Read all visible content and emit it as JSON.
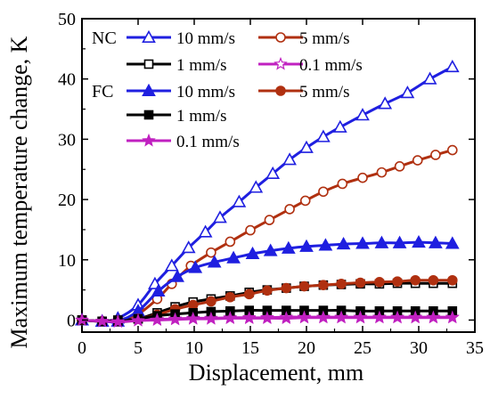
{
  "chart_data": {
    "type": "line",
    "xlabel": "Displacement, mm",
    "ylabel": "Maximum temperature change, K",
    "xlim": [
      0,
      35
    ],
    "ylim": [
      -2,
      50
    ],
    "xticks": [
      "0",
      "5",
      "10",
      "15",
      "20",
      "25",
      "30",
      "35"
    ],
    "yticks": [
      "0",
      "10",
      "20",
      "30",
      "40",
      "50"
    ],
    "grid": false,
    "legend_placement": "top-left",
    "legend_groups": [
      "NC",
      "FC"
    ],
    "series": [
      {
        "name": "10 mm/s",
        "group": "NC",
        "color": "#1f1fe0",
        "marker": "triangle-open",
        "x": [
          0,
          1.8,
          3.2,
          5,
          6.5,
          8,
          9.5,
          11,
          12.3,
          14,
          15.5,
          17,
          18.5,
          20,
          21.5,
          23,
          25,
          27,
          29,
          31,
          33
        ],
        "y": [
          0,
          -0.2,
          0.3,
          2.5,
          6,
          9,
          12,
          14.6,
          17,
          19.6,
          22,
          24.3,
          26.6,
          28.6,
          30.4,
          32,
          34,
          35.9,
          37.7,
          40,
          42
        ]
      },
      {
        "name": "5 mm/s",
        "group": "NC",
        "color": "#b03010",
        "marker": "circle-open",
        "x": [
          0,
          1.8,
          3.2,
          5,
          6.7,
          8,
          9.7,
          11.5,
          13.2,
          15,
          16.7,
          18.5,
          19.9,
          21.5,
          23.2,
          25,
          26.7,
          28.3,
          29.9,
          31.5,
          33
        ],
        "y": [
          0,
          -0.2,
          0,
          1,
          3.5,
          6,
          9,
          11.2,
          13,
          14.9,
          16.6,
          18.4,
          19.8,
          21.3,
          22.6,
          23.6,
          24.5,
          25.5,
          26.5,
          27.4,
          28.2
        ]
      },
      {
        "name": "1 mm/s",
        "group": "NC",
        "color": "#000000",
        "marker": "square-open",
        "x": [
          0,
          1.8,
          3.2,
          5,
          6.7,
          8.3,
          9.9,
          11.5,
          13.2,
          14.9,
          16.5,
          18.2,
          19.8,
          21.5,
          23.1,
          24.8,
          26.5,
          28.1,
          29.7,
          31.3,
          33
        ],
        "y": [
          0,
          -0.2,
          0,
          0.2,
          1.2,
          2.2,
          3,
          3.5,
          4,
          4.6,
          5,
          5.3,
          5.6,
          5.8,
          5.9,
          6,
          6,
          6.1,
          6.1,
          6.1,
          6.1
        ]
      },
      {
        "name": "0.1 mm/s",
        "group": "NC",
        "color": "#c020c0",
        "marker": "star-open",
        "x": [
          0,
          1.8,
          3.2,
          5,
          6.7,
          8.3,
          9.9,
          11.5,
          13.2,
          14.9,
          16.5,
          18.2,
          19.8,
          21.5,
          23.1,
          24.8,
          26.5,
          28.1,
          29.7,
          31.3,
          33
        ],
        "y": [
          0,
          -0.2,
          -0.2,
          0,
          0.1,
          0.2,
          0.3,
          0.3,
          0.4,
          0.4,
          0.4,
          0.5,
          0.5,
          0.5,
          0.5,
          0.5,
          0.5,
          0.5,
          0.5,
          0.5,
          0.5
        ]
      },
      {
        "name": "10 mm/s",
        "group": "FC",
        "color": "#1f1fe0",
        "marker": "triangle-filled",
        "x": [
          0,
          1.8,
          3.2,
          5,
          6.8,
          8.5,
          10.1,
          11.8,
          13.5,
          15.2,
          16.8,
          18.4,
          20,
          21.7,
          23.3,
          25,
          26.7,
          28.3,
          30,
          31.5,
          33
        ],
        "y": [
          0,
          -0.2,
          -0.2,
          1.5,
          4.8,
          7.2,
          8.7,
          9.6,
          10.3,
          11,
          11.5,
          11.9,
          12.2,
          12.4,
          12.6,
          12.7,
          12.8,
          12.8,
          12.9,
          12.8,
          12.7
        ]
      },
      {
        "name": "5 mm/s",
        "group": "FC",
        "color": "#b03010",
        "marker": "circle-filled",
        "x": [
          0,
          1.8,
          3.2,
          5,
          6.7,
          8.3,
          9.9,
          11.5,
          13.2,
          14.9,
          16.5,
          18.2,
          19.8,
          21.5,
          23.1,
          24.8,
          26.5,
          28.1,
          29.7,
          31.3,
          33
        ],
        "y": [
          0,
          -0.2,
          -0.2,
          0.2,
          0.9,
          1.8,
          2.5,
          3.1,
          3.8,
          4.3,
          4.9,
          5.3,
          5.6,
          5.8,
          6,
          6.2,
          6.3,
          6.4,
          6.6,
          6.6,
          6.6
        ]
      },
      {
        "name": "1 mm/s",
        "group": "FC",
        "color": "#000000",
        "marker": "square-filled",
        "x": [
          0,
          1.8,
          3.2,
          5,
          6.7,
          8.3,
          9.9,
          11.5,
          13.2,
          14.9,
          16.5,
          18.2,
          19.8,
          21.5,
          23.1,
          24.8,
          26.5,
          28.1,
          29.7,
          31.3,
          33
        ],
        "y": [
          0,
          -0.2,
          -0.2,
          0.2,
          0.7,
          1,
          1.2,
          1.4,
          1.5,
          1.6,
          1.6,
          1.6,
          1.6,
          1.6,
          1.6,
          1.5,
          1.5,
          1.5,
          1.5,
          1.5,
          1.5
        ]
      },
      {
        "name": "0.1 mm/s",
        "group": "FC",
        "color": "#c020c0",
        "marker": "star-filled",
        "x": [
          0,
          1.8,
          3.2,
          5,
          6.7,
          8.3,
          9.9,
          11.5,
          13.2,
          14.9,
          16.5,
          18.2,
          19.8,
          21.5,
          23.1,
          24.8,
          26.5,
          28.1,
          29.7,
          31.3,
          33
        ],
        "y": [
          0,
          -0.2,
          -0.3,
          -0.1,
          0,
          0.1,
          0.2,
          0.2,
          0.3,
          0.3,
          0.3,
          0.3,
          0.4,
          0.4,
          0.4,
          0.4,
          0.4,
          0.4,
          0.4,
          0.4,
          0.4
        ]
      }
    ]
  }
}
